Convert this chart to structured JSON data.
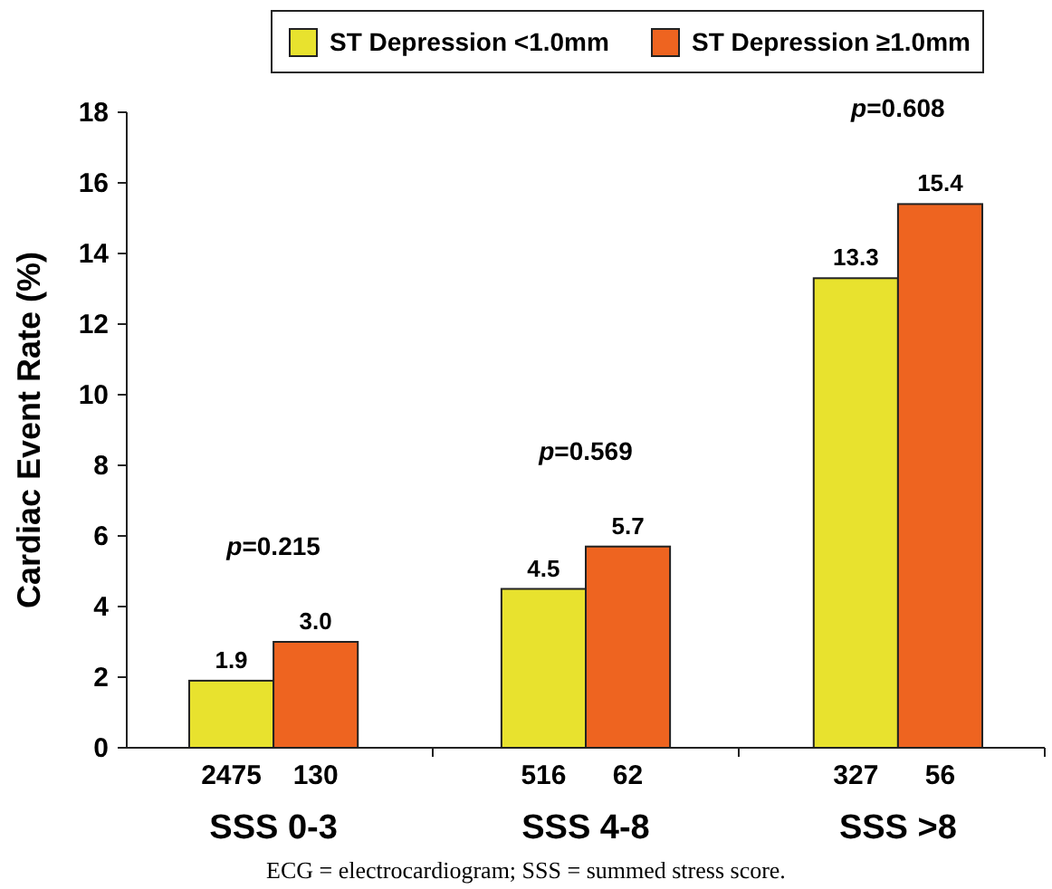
{
  "chart_data": {
    "type": "bar",
    "ylabel": "Cardiac Event Rate (%)",
    "categories": [
      "SSS 0-3",
      "SSS 4-8",
      "SSS >8"
    ],
    "series": [
      {
        "name": "ST Depression <1.0mm",
        "color": "#e8e22e",
        "values": [
          1.9,
          4.5,
          13.3
        ],
        "value_labels": [
          "1.9",
          "4.5",
          "13.3"
        ]
      },
      {
        "name": "ST Depression ≥1.0mm",
        "color": "#ee6420",
        "values": [
          3.0,
          5.7,
          15.4
        ],
        "value_labels": [
          "3.0",
          "5.7",
          "15.4"
        ]
      }
    ],
    "ylim": [
      0,
      18
    ],
    "yticks": [
      0,
      2,
      4,
      6,
      8,
      10,
      12,
      14,
      16,
      18
    ],
    "legend": "top",
    "grid": false,
    "annotations": [
      "p=0.215",
      "p=0.569",
      "p=0.608",
      "2475",
      "130",
      "516",
      "62",
      "327",
      "56",
      "ECG = electrocardiogram; SSS = summed stress score."
    ]
  }
}
